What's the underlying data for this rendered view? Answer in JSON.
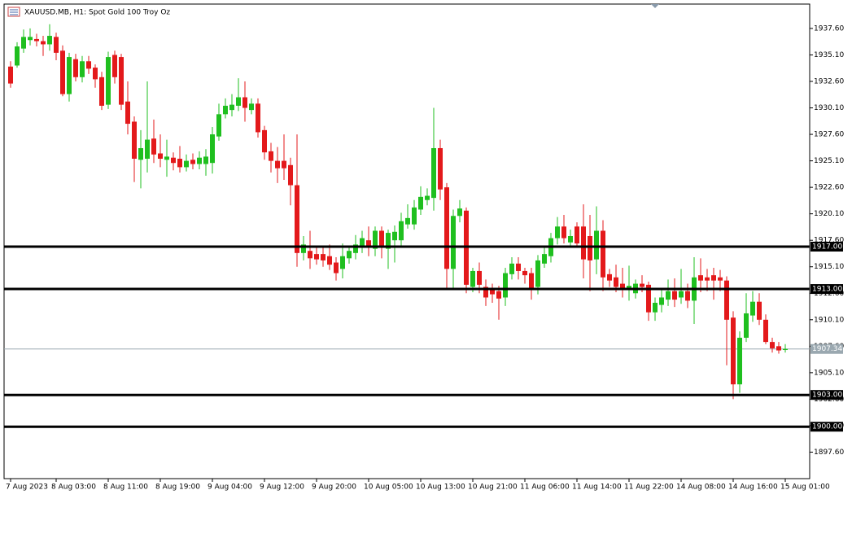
{
  "chart_data": {
    "type": "candlestick",
    "title": "XAUUSD.MB, H1:  Spot Gold 100 Troy Oz",
    "up_color": "#1fbf1f",
    "down_color": "#e3191b",
    "categories": [
      "7 Aug 2023",
      null,
      null,
      null,
      null,
      null,
      null,
      "8 Aug 03:00",
      null,
      null,
      null,
      null,
      null,
      null,
      null,
      "8 Aug 11:00",
      null,
      null,
      null,
      null,
      null,
      null,
      null,
      "8 Aug 19:00",
      null,
      null,
      null,
      null,
      null,
      null,
      null,
      "9 Aug 04:00",
      null,
      null,
      null,
      null,
      null,
      null,
      null,
      "9 Aug 12:00",
      null,
      null,
      null,
      null,
      null,
      null,
      null,
      "9 Aug 20:00",
      null,
      null,
      null,
      null,
      null,
      null,
      null,
      "10 Aug 05:00",
      null,
      null,
      null,
      null,
      null,
      null,
      null,
      "10 Aug 13:00",
      null,
      null,
      null,
      null,
      null,
      null,
      null,
      "10 Aug 21:00",
      null,
      null,
      null,
      null,
      null,
      null,
      null,
      "11 Aug 06:00",
      null,
      null,
      null,
      null,
      null,
      null,
      null,
      "11 Aug 14:00",
      null,
      null,
      null,
      null,
      null,
      null,
      null,
      "11 Aug 22:00",
      null,
      null,
      null,
      null,
      null,
      null,
      null,
      "14 Aug 08:00",
      null,
      null,
      null,
      null,
      null,
      null,
      null,
      "14 Aug 16:00",
      null,
      null,
      null,
      null,
      null,
      null,
      null,
      "15 Aug 01:00"
    ],
    "open": [
      1934.0,
      1934.1,
      1935.7,
      1936.5,
      1936.6,
      1936.4,
      1936.1,
      1936.8,
      1935.5,
      1931.4,
      1934.7,
      1933.0,
      1934.5,
      1933.9,
      1933.0,
      1930.4,
      1935.1,
      1934.9,
      1930.7,
      1928.8,
      1925.2,
      1925.3,
      1927.2,
      1925.8,
      1925.2,
      1925.4,
      1925.3,
      1924.5,
      1925.2,
      1924.8,
      1924.8,
      1924.9,
      1927.4,
      1929.5,
      1929.9,
      1930.3,
      1931.1,
      1929.9,
      1930.5,
      1928.0,
      1926.0,
      1925.1,
      1925.1,
      1924.7,
      1922.8,
      1916.4,
      1916.6,
      1916.3,
      1916.3,
      1916.1,
      1915.5,
      1914.9,
      1915.9,
      1916.4,
      1917.1,
      1917.6,
      1916.8,
      1918.5,
      1916.8,
      1917.6,
      1917.6,
      1919.1,
      1919.1,
      1920.5,
      1921.4,
      1921.6,
      1926.3,
      1922.6,
      1914.9,
      1919.9,
      1920.4,
      1913.2,
      1914.7,
      1913.2,
      1913.0,
      1912.8,
      1912.2,
      1914.4,
      1915.4,
      1914.7,
      1914.5,
      1913.2,
      1915.4,
      1916.1,
      1917.8,
      1918.9,
      1917.4,
      1918.9,
      1918.9,
      1918.0,
      1915.8,
      1918.5,
      1914.4,
      1914.1,
      1913.5,
      1912.9,
      1912.6,
      1913.5,
      1913.4,
      1910.8,
      1911.5,
      1912.0,
      1912.8,
      1912.2,
      1912.8,
      1911.9,
      1914.3,
      1914.1,
      1914.3,
      1914.1,
      1913.8,
      1910.3,
      1904.0,
      1908.4,
      1910.5,
      1911.8,
      1910.1,
      1908.0,
      1907.6,
      1907.24
    ],
    "high": [
      1934.5,
      1936.3,
      1937.5,
      1937.6,
      1937.1,
      1936.9,
      1938.0,
      1937.2,
      1936.0,
      1935.3,
      1935.2,
      1935.0,
      1935.0,
      1934.2,
      1933.5,
      1935.4,
      1935.5,
      1935.2,
      1932.6,
      1929.3,
      1928.0,
      1932.6,
      1929.0,
      1927.6,
      1927.1,
      1925.9,
      1926.5,
      1925.7,
      1925.8,
      1926.0,
      1926.2,
      1928.3,
      1930.5,
      1931.0,
      1931.4,
      1932.9,
      1932.6,
      1931.0,
      1931.0,
      1928.4,
      1926.8,
      1926.4,
      1927.6,
      1925.4,
      1927.6,
      1918.0,
      1918.5,
      1916.9,
      1917.0,
      1917.2,
      1916.0,
      1917.3,
      1917.0,
      1918.1,
      1918.5,
      1918.9,
      1918.9,
      1918.9,
      1918.6,
      1919.0,
      1920.2,
      1921.0,
      1921.4,
      1922.7,
      1922.5,
      1930.1,
      1927.1,
      1923.0,
      1920.5,
      1921.4,
      1920.7,
      1915.0,
      1915.5,
      1913.9,
      1913.5,
      1913.3,
      1915.0,
      1916.0,
      1916.0,
      1915.0,
      1915.0,
      1916.2,
      1917.0,
      1918.3,
      1919.8,
      1920.0,
      1918.6,
      1919.3,
      1921.0,
      1920.0,
      1920.8,
      1919.5,
      1914.9,
      1915.3,
      1915.0,
      1915.2,
      1913.9,
      1914.3,
      1913.7,
      1912.2,
      1913.0,
      1913.9,
      1914.0,
      1914.9,
      1913.5,
      1916.0,
      1915.9,
      1914.9,
      1915.0,
      1914.8,
      1914.2,
      1910.9,
      1909.0,
      1912.6,
      1912.8,
      1912.6,
      1910.6,
      1908.4,
      1908.0,
      1907.8
    ],
    "low": [
      1932.0,
      1933.9,
      1935.3,
      1936.0,
      1935.9,
      1935.0,
      1935.5,
      1934.6,
      1931.2,
      1930.7,
      1932.6,
      1932.5,
      1933.3,
      1932.0,
      1929.9,
      1930.0,
      1932.4,
      1929.9,
      1927.6,
      1923.1,
      1922.5,
      1924.0,
      1924.9,
      1924.5,
      1923.6,
      1924.2,
      1924.0,
      1924.1,
      1924.3,
      1924.3,
      1923.7,
      1923.9,
      1927.0,
      1929.1,
      1929.3,
      1929.8,
      1928.8,
      1929.5,
      1927.3,
      1925.2,
      1924.0,
      1923.0,
      1923.3,
      1920.9,
      1915.1,
      1915.7,
      1914.9,
      1915.3,
      1915.1,
      1914.8,
      1913.8,
      1914.0,
      1915.4,
      1915.8,
      1916.4,
      1916.1,
      1916.1,
      1915.9,
      1914.9,
      1915.5,
      1917.0,
      1918.7,
      1918.6,
      1920.0,
      1920.9,
      1920.4,
      1921.4,
      1912.9,
      1913.0,
      1919.3,
      1912.6,
      1912.7,
      1912.6,
      1911.4,
      1911.7,
      1910.1,
      1911.4,
      1913.9,
      1913.9,
      1913.5,
      1912.0,
      1912.5,
      1915.0,
      1915.5,
      1917.2,
      1917.3,
      1917.0,
      1916.9,
      1914.0,
      1912.8,
      1914.4,
      1912.8,
      1913.2,
      1912.7,
      1912.2,
      1911.9,
      1912.1,
      1912.7,
      1910.0,
      1910.0,
      1910.8,
      1911.4,
      1911.3,
      1911.6,
      1911.2,
      1909.7,
      1912.7,
      1912.8,
      1912.0,
      1912.8,
      1905.8,
      1902.6,
      1903.2,
      1908.0,
      1909.9,
      1909.6,
      1907.8,
      1907.0,
      1906.9,
      1907.0
    ],
    "close": [
      1932.4,
      1935.9,
      1936.8,
      1936.8,
      1936.4,
      1936.1,
      1936.9,
      1935.3,
      1931.4,
      1934.9,
      1933.0,
      1934.5,
      1933.8,
      1932.8,
      1930.3,
      1934.9,
      1933.0,
      1930.4,
      1928.6,
      1925.3,
      1926.3,
      1927.1,
      1925.7,
      1925.3,
      1925.5,
      1924.9,
      1924.5,
      1925.1,
      1924.8,
      1925.4,
      1925.5,
      1927.6,
      1929.5,
      1930.3,
      1930.4,
      1931.1,
      1930.1,
      1930.5,
      1927.8,
      1925.9,
      1925.1,
      1924.4,
      1924.4,
      1922.8,
      1916.4,
      1917.2,
      1915.9,
      1915.8,
      1915.7,
      1915.3,
      1914.5,
      1916.1,
      1916.6,
      1917.2,
      1917.8,
      1917.0,
      1918.5,
      1917.0,
      1918.3,
      1918.4,
      1919.4,
      1919.7,
      1920.7,
      1921.7,
      1921.8,
      1926.3,
      1922.4,
      1914.9,
      1919.9,
      1920.6,
      1913.4,
      1914.7,
      1913.4,
      1912.2,
      1912.5,
      1912.1,
      1914.5,
      1915.4,
      1914.7,
      1914.3,
      1913.0,
      1915.7,
      1916.3,
      1917.8,
      1918.9,
      1917.8,
      1918.0,
      1917.3,
      1915.8,
      1915.7,
      1918.5,
      1914.1,
      1913.8,
      1913.2,
      1913.0,
      1913.3,
      1913.5,
      1913.2,
      1910.8,
      1911.7,
      1912.2,
      1912.8,
      1912.0,
      1912.8,
      1911.9,
      1914.1,
      1913.8,
      1913.8,
      1913.8,
      1913.8,
      1910.1,
      1904.0,
      1908.4,
      1910.7,
      1911.8,
      1910.1,
      1908.0,
      1907.4,
      1907.2,
      1907.34
    ],
    "ylim": [
      1895.1,
      1939.9
    ],
    "yticks": [
      {
        "value": 1937.6,
        "label": "1937.60"
      },
      {
        "value": 1935.1,
        "label": "1935.10"
      },
      {
        "value": 1932.6,
        "label": "1932.60"
      },
      {
        "value": 1930.1,
        "label": "1930.10"
      },
      {
        "value": 1927.6,
        "label": "1927.60"
      },
      {
        "value": 1925.1,
        "label": "1925.10"
      },
      {
        "value": 1922.6,
        "label": "1922.60"
      },
      {
        "value": 1920.1,
        "label": "1920.10"
      },
      {
        "value": 1917.6,
        "label": "1917.60"
      },
      {
        "value": 1915.1,
        "label": "1915.10"
      },
      {
        "value": 1912.6,
        "label": "1912.60"
      },
      {
        "value": 1910.1,
        "label": "1910.10"
      },
      {
        "value": 1907.6,
        "label": "1907.60"
      },
      {
        "value": 1905.1,
        "label": "1905.10"
      },
      {
        "value": 1902.6,
        "label": "1902.60"
      },
      {
        "value": 1900.1,
        "label": "1900.10"
      },
      {
        "value": 1897.6,
        "label": "1897.60"
      }
    ],
    "levels": [
      {
        "value": 1917.0,
        "label": "1917.00"
      },
      {
        "value": 1913.0,
        "label": "1913.00"
      },
      {
        "value": 1903.0,
        "label": "1903.00"
      },
      {
        "value": 1900.0,
        "label": "1900.00"
      }
    ],
    "current_price": {
      "value": 1907.34,
      "label": "1907.34"
    }
  }
}
